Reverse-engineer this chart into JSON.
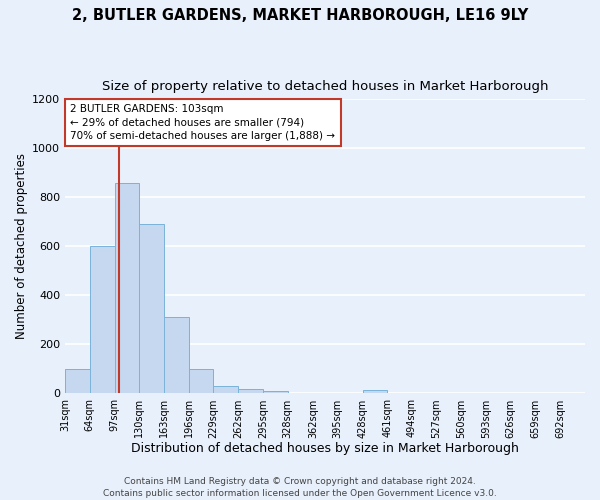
{
  "title": "2, BUTLER GARDENS, MARKET HARBOROUGH, LE16 9LY",
  "subtitle": "Size of property relative to detached houses in Market Harborough",
  "xlabel": "Distribution of detached houses by size in Market Harborough",
  "ylabel": "Number of detached properties",
  "bar_edges": [
    31,
    64,
    97,
    130,
    163,
    196,
    229,
    262,
    295,
    328,
    362,
    395,
    428,
    461,
    494,
    527,
    560,
    593,
    626,
    659,
    692
  ],
  "bar_heights": [
    100,
    600,
    855,
    690,
    310,
    100,
    30,
    18,
    10,
    0,
    0,
    0,
    15,
    0,
    0,
    0,
    0,
    0,
    0,
    0
  ],
  "bar_color": "#c5d8f0",
  "bar_edge_color": "#7ab3d9",
  "vline_x": 103,
  "vline_color": "#c0392b",
  "ylim": [
    0,
    1200
  ],
  "yticks": [
    0,
    200,
    400,
    600,
    800,
    1000,
    1200
  ],
  "annotation_title": "2 BUTLER GARDENS: 103sqm",
  "annotation_line1": "← 29% of detached houses are smaller (794)",
  "annotation_line2": "70% of semi-detached houses are larger (1,888) →",
  "footer_line1": "Contains HM Land Registry data © Crown copyright and database right 2024.",
  "footer_line2": "Contains public sector information licensed under the Open Government Licence v3.0.",
  "background_color": "#e8f0fb",
  "grid_color": "#ffffff",
  "title_fontsize": 10.5,
  "subtitle_fontsize": 9.5,
  "xlabel_fontsize": 9,
  "ylabel_fontsize": 8.5,
  "tick_fontsize": 7,
  "footer_fontsize": 6.5,
  "tick_labels": [
    "31sqm",
    "64sqm",
    "97sqm",
    "130sqm",
    "163sqm",
    "196sqm",
    "229sqm",
    "262sqm",
    "295sqm",
    "328sqm",
    "362sqm",
    "395sqm",
    "428sqm",
    "461sqm",
    "494sqm",
    "527sqm",
    "560sqm",
    "593sqm",
    "626sqm",
    "659sqm",
    "692sqm"
  ]
}
